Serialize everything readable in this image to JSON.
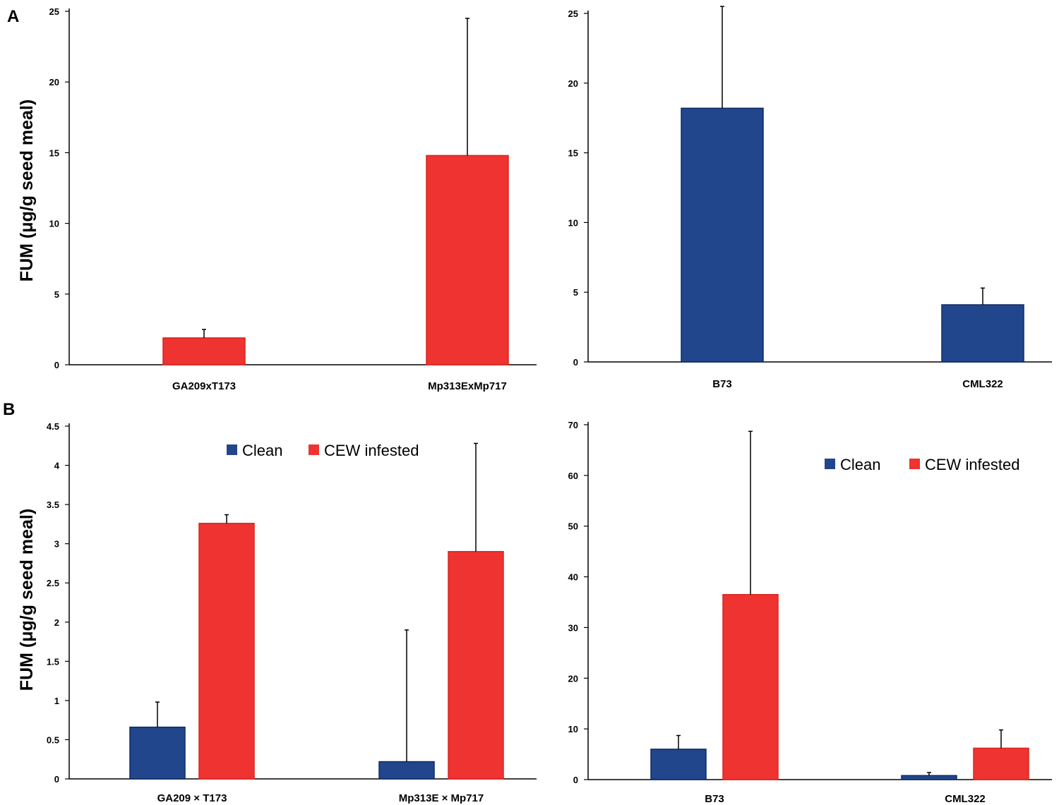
{
  "panels": {
    "a": "A",
    "b": "B"
  },
  "colors": {
    "clean": "#21468c",
    "infested": "#ee3330",
    "axis": "#000000"
  },
  "chart_data": [
    {
      "type": "bar",
      "ylabel": "FUM (μg/g seed meal)",
      "ylim": [
        0,
        25
      ],
      "yticks": [
        0,
        5,
        10,
        15,
        20,
        25
      ],
      "categories": [
        "GA209xT173",
        "Mp313ExMp717"
      ],
      "series": [
        {
          "name": "",
          "color": "#ee3330",
          "values": [
            1.9,
            14.8
          ],
          "errors": [
            0.6,
            9.7
          ]
        }
      ],
      "legend": null
    },
    {
      "type": "bar",
      "ylabel": "",
      "ylim": [
        0,
        25
      ],
      "yticks": [
        0,
        5,
        10,
        15,
        20,
        25
      ],
      "categories": [
        "B73",
        "CML322"
      ],
      "series": [
        {
          "name": "",
          "color": "#21468c",
          "values": [
            18.2,
            4.1
          ],
          "errors": [
            7.3,
            1.2
          ]
        }
      ],
      "legend": null
    },
    {
      "type": "bar",
      "ylabel": "FUM (μg/g seed meal)",
      "ylim": [
        0,
        4.5
      ],
      "yticks": [
        0,
        0.5,
        1,
        1.5,
        2,
        2.5,
        3,
        3.5,
        4,
        4.5
      ],
      "categories": [
        "GA209 × T173",
        "Mp313E × Mp717"
      ],
      "series": [
        {
          "name": "Clean",
          "color": "#21468c",
          "values": [
            0.66,
            0.22
          ],
          "errors": [
            0.32,
            1.68
          ]
        },
        {
          "name": "CEW infested",
          "color": "#ee3330",
          "values": [
            3.26,
            2.9
          ],
          "errors": [
            0.11,
            1.38
          ]
        }
      ],
      "legend": "top"
    },
    {
      "type": "bar",
      "ylabel": "",
      "ylim": [
        0,
        70
      ],
      "yticks": [
        0,
        10,
        20,
        30,
        40,
        50,
        60,
        70
      ],
      "categories": [
        "B73",
        "CML322"
      ],
      "series": [
        {
          "name": "Clean",
          "color": "#21468c",
          "values": [
            6,
            0.8
          ],
          "errors": [
            2.7,
            0.6
          ]
        },
        {
          "name": "CEW infested",
          "color": "#ee3330",
          "values": [
            36.5,
            6.2
          ],
          "errors": [
            32.2,
            3.6
          ]
        }
      ],
      "legend": "top-right"
    }
  ]
}
